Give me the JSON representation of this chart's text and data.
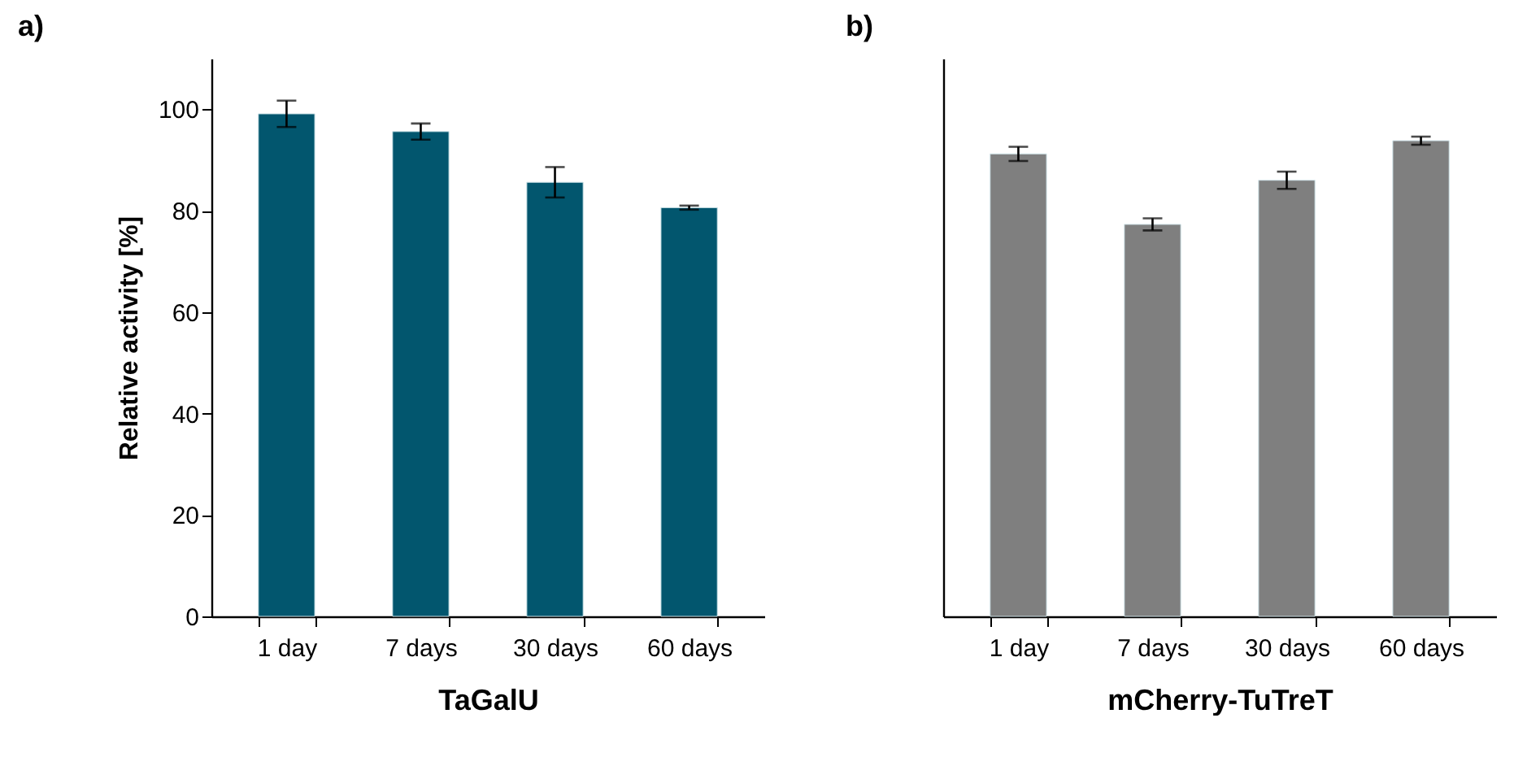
{
  "chart_data": [
    {
      "type": "bar",
      "title": "a)",
      "xlabel": "TaGalU",
      "ylabel": "Relative activity [%]",
      "categories": [
        "1 day",
        "7 days",
        "30 days",
        "60 days"
      ],
      "values": [
        99.1,
        95.6,
        85.6,
        80.6
      ],
      "errors": [
        2.6,
        1.6,
        3,
        0.4
      ],
      "color": "#02566e",
      "ylim": [
        0,
        110
      ],
      "yticks": [
        0,
        20,
        40,
        60,
        80,
        100
      ]
    },
    {
      "type": "bar",
      "title": "b)",
      "xlabel": "mCherry-TuTreT",
      "categories": [
        "1 day",
        "7 days",
        "30 days",
        "60 days"
      ],
      "values": [
        91.2,
        77.3,
        86,
        93.8
      ],
      "errors": [
        1.4,
        1.2,
        1.7,
        0.8
      ],
      "color": "#7f7f7f",
      "ylim": [
        0,
        110
      ],
      "tick_labels": "x"
    }
  ]
}
